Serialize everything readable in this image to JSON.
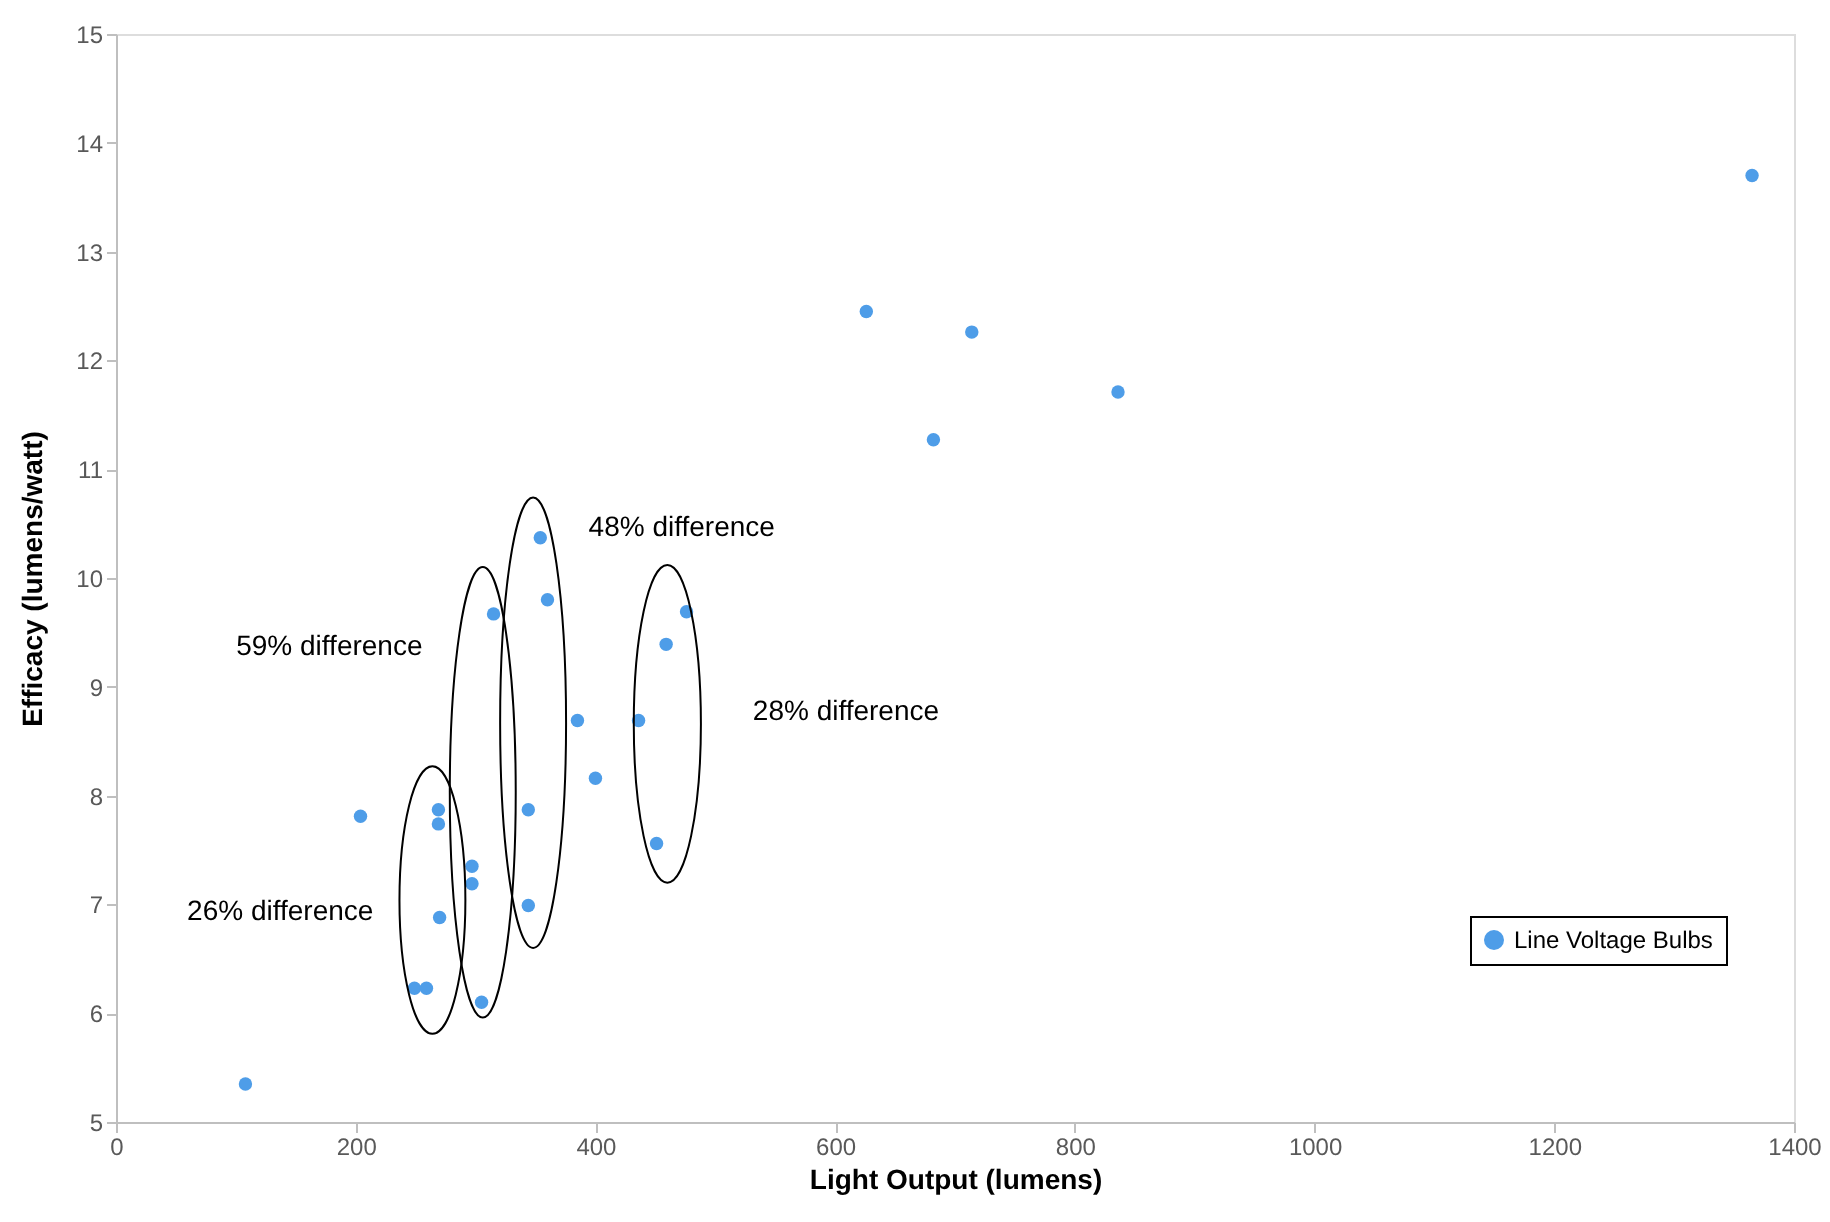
{
  "chart_data": {
    "type": "scatter",
    "xlabel": "Light Output (lumens)",
    "ylabel": "Efficacy (lumens/watt)",
    "x": [
      108,
      204,
      269,
      269,
      270,
      249,
      259,
      297,
      297,
      305,
      315,
      344,
      344,
      354,
      360,
      385,
      400,
      436,
      451,
      459,
      476,
      626,
      682,
      714,
      836,
      1365
    ],
    "series": [
      {
        "name": "Line Voltage Bulbs",
        "color": "#4e9de8",
        "values": [
          5.35,
          7.81,
          7.87,
          7.74,
          6.88,
          6.23,
          6.23,
          7.35,
          7.19,
          6.1,
          9.67,
          7.87,
          6.99,
          10.37,
          9.8,
          8.69,
          8.16,
          8.69,
          7.56,
          9.39,
          9.69,
          12.45,
          11.27,
          12.26,
          11.71,
          13.7
        ]
      }
    ],
    "xlim": [
      0,
      1400
    ],
    "xticks": [
      0,
      200,
      400,
      600,
      800,
      1000,
      1200,
      1400
    ],
    "ylim": [
      5,
      15
    ],
    "yticks": [
      5,
      6,
      7,
      8,
      9,
      10,
      11,
      12,
      13,
      14,
      15
    ],
    "grid": false,
    "legend": "bottom right",
    "marker": "circle",
    "annotations": [
      "26% difference",
      "59% difference",
      "48% difference",
      "28% difference"
    ]
  }
}
